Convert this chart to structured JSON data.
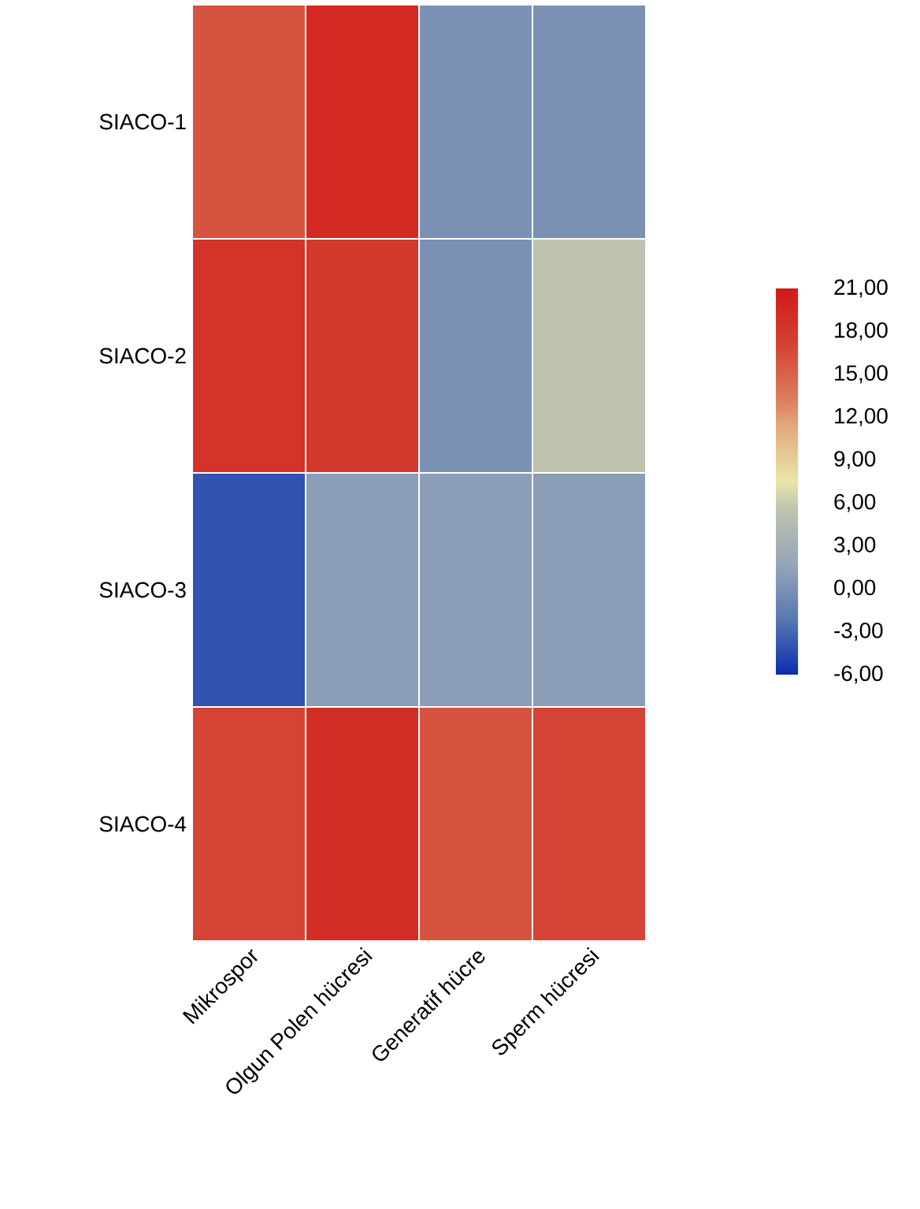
{
  "chart_data": {
    "type": "heatmap",
    "categories": [
      "Mikrospor",
      "Olgun Polen hücresi",
      "Generatif hücre",
      "Sperm hücresi"
    ],
    "y_categories": [
      "SIACO-1",
      "SIACO-2",
      "SIACO-3",
      "SIACO-4"
    ],
    "cells": [
      [
        16,
        19.5,
        0,
        0
      ],
      [
        18.5,
        18,
        0,
        5.5
      ],
      [
        -4,
        1,
        1,
        1
      ],
      [
        17,
        19,
        16,
        17
      ]
    ],
    "clim": [
      -6,
      21
    ],
    "cticks": [
      {
        "value": -6,
        "label": "-6,00"
      },
      {
        "value": -3,
        "label": "-3,00"
      },
      {
        "value": 0,
        "label": "0,00"
      },
      {
        "value": 3,
        "label": "3,00"
      },
      {
        "value": 6,
        "label": "6,00"
      },
      {
        "value": 9,
        "label": "9,00"
      },
      {
        "value": 12,
        "label": "12,00"
      },
      {
        "value": 15,
        "label": "15,00"
      },
      {
        "value": 18,
        "label": "18,00"
      },
      {
        "value": 21,
        "label": "21,00"
      }
    ]
  }
}
